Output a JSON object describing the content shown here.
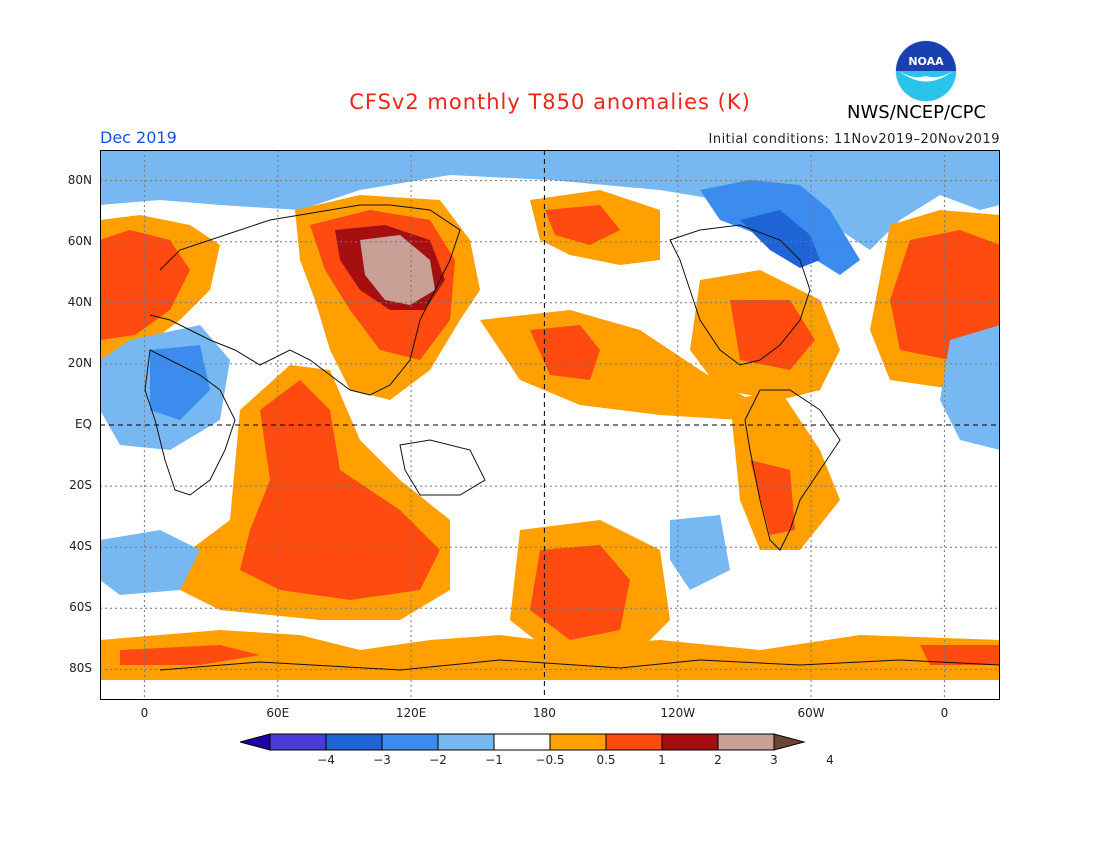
{
  "header": {
    "title": "CFSv2 monthly T850 anomalies (K)",
    "agency": "NWS/NCEP/CPC",
    "period": "Dec 2019",
    "initial_conditions": "Initial conditions: 11Nov2019–20Nov2019",
    "logo_text": "NOAA"
  },
  "axes": {
    "lat_ticks": [
      {
        "label": "80N",
        "lat": 80
      },
      {
        "label": "60N",
        "lat": 60
      },
      {
        "label": "40N",
        "lat": 40
      },
      {
        "label": "20N",
        "lat": 20
      },
      {
        "label": "EQ",
        "lat": 0
      },
      {
        "label": "20S",
        "lat": -20
      },
      {
        "label": "40S",
        "lat": -40
      },
      {
        "label": "60S",
        "lat": -60
      },
      {
        "label": "80S",
        "lat": -80
      }
    ],
    "lon_ticks": [
      {
        "label": "0",
        "lon": 0
      },
      {
        "label": "60E",
        "lon": 60
      },
      {
        "label": "120E",
        "lon": 120
      },
      {
        "label": "180",
        "lon": 180
      },
      {
        "label": "120W",
        "lon": 240
      },
      {
        "label": "60W",
        "lon": 300
      },
      {
        "label": "0",
        "lon": 360
      }
    ],
    "lon_range": [
      -20,
      385
    ],
    "lat_range": [
      -90,
      90
    ]
  },
  "colorbar": {
    "labels": [
      "−4",
      "−3",
      "−2",
      "−1",
      "−0.5",
      "0.5",
      "1",
      "2",
      "3",
      "4"
    ],
    "colors": [
      "#1e00a8",
      "#4a3bd6",
      "#1e64d6",
      "#3c8cf0",
      "#78b8f2",
      "#ffffff",
      "#ffa000",
      "#ff4b0f",
      "#a50f0f",
      "#c8a096",
      "#6b4636"
    ]
  }
}
